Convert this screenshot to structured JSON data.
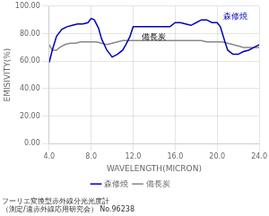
{
  "chart_data": {
    "type": "line",
    "xlabel": "WAVELENGTH(MICRON)",
    "ylabel": "EMISIVITY(%)",
    "xlim": [
      4.0,
      24.0
    ],
    "ylim": [
      0.0,
      100.0
    ],
    "xticks": [
      {
        "value": 4,
        "label": "4.0"
      },
      {
        "value": 8,
        "label": "8.0"
      },
      {
        "value": 12,
        "label": "12.0"
      },
      {
        "value": 16,
        "label": "16.0"
      },
      {
        "value": 20,
        "label": "20.0"
      },
      {
        "value": 24,
        "label": "24.0"
      }
    ],
    "yticks": [
      {
        "value": 0,
        "label": "0.00"
      },
      {
        "value": 20,
        "label": "20.00"
      },
      {
        "value": 40,
        "label": "40.00"
      },
      {
        "value": 60,
        "label": "60.00"
      },
      {
        "value": 80,
        "label": "80.00"
      },
      {
        "value": 100,
        "label": "100.00"
      }
    ],
    "grid": true,
    "legend": "bottom",
    "subtitle": [
      "フーリエ変換型赤外線分光光度計",
      "（測定/遠赤外線応用研究会） No.96238"
    ],
    "annotations": [
      {
        "text": "備長炭",
        "x": 12.8,
        "y": 76,
        "color": "#000000"
      },
      {
        "text": "森修焼",
        "x": 20.6,
        "y": 91,
        "color": "#0000bb"
      }
    ],
    "series": [
      {
        "name": "森修焼",
        "color": "#0000bb",
        "x": [
          4.0,
          4.3,
          4.7,
          5.2,
          5.7,
          6.2,
          6.7,
          7.2,
          7.7,
          8.0,
          8.3,
          8.7,
          9.0,
          9.5,
          10.0,
          10.5,
          11.0,
          11.3,
          11.7,
          12.0,
          12.5,
          13.0,
          13.5,
          14.0,
          14.5,
          15.0,
          15.5,
          16.0,
          16.5,
          17.0,
          17.5,
          18.0,
          18.5,
          19.0,
          19.5,
          20.0,
          20.3,
          20.7,
          21.0,
          21.5,
          22.0,
          22.5,
          23.0,
          23.5,
          24.0
        ],
        "values": [
          59,
          68,
          78,
          83,
          85,
          86,
          87,
          87,
          88,
          91,
          90,
          84,
          76,
          68,
          63,
          65,
          68,
          72,
          78,
          85,
          85,
          85,
          85,
          85,
          85,
          85,
          85,
          88,
          88,
          87,
          86,
          88,
          90,
          90,
          88,
          88,
          85,
          75,
          68,
          65,
          65,
          67,
          68,
          70,
          72
        ]
      },
      {
        "name": "備長炭",
        "color": "#888888",
        "x": [
          4.0,
          4.3,
          4.7,
          5.0,
          5.5,
          6.0,
          6.5,
          7.0,
          7.5,
          8.0,
          8.5,
          9.0,
          9.5,
          10.0,
          10.5,
          11.0,
          11.5,
          12.0,
          12.5,
          13.0,
          13.5,
          14.0,
          14.5,
          15.0,
          15.5,
          16.0,
          16.5,
          17.0,
          17.5,
          18.0,
          18.5,
          19.0,
          19.5,
          20.0,
          20.5,
          21.0,
          21.5,
          22.0,
          22.5,
          23.0,
          23.5,
          24.0
        ],
        "values": [
          72,
          68,
          68,
          70,
          72,
          73,
          73,
          74,
          74,
          74,
          74,
          73,
          72,
          73,
          74,
          75,
          75,
          75,
          75,
          75,
          75,
          75,
          75,
          75,
          75,
          75,
          75,
          75,
          75,
          75,
          75,
          74,
          74,
          74,
          74,
          73,
          72,
          71,
          70,
          70,
          70,
          70
        ]
      }
    ]
  }
}
